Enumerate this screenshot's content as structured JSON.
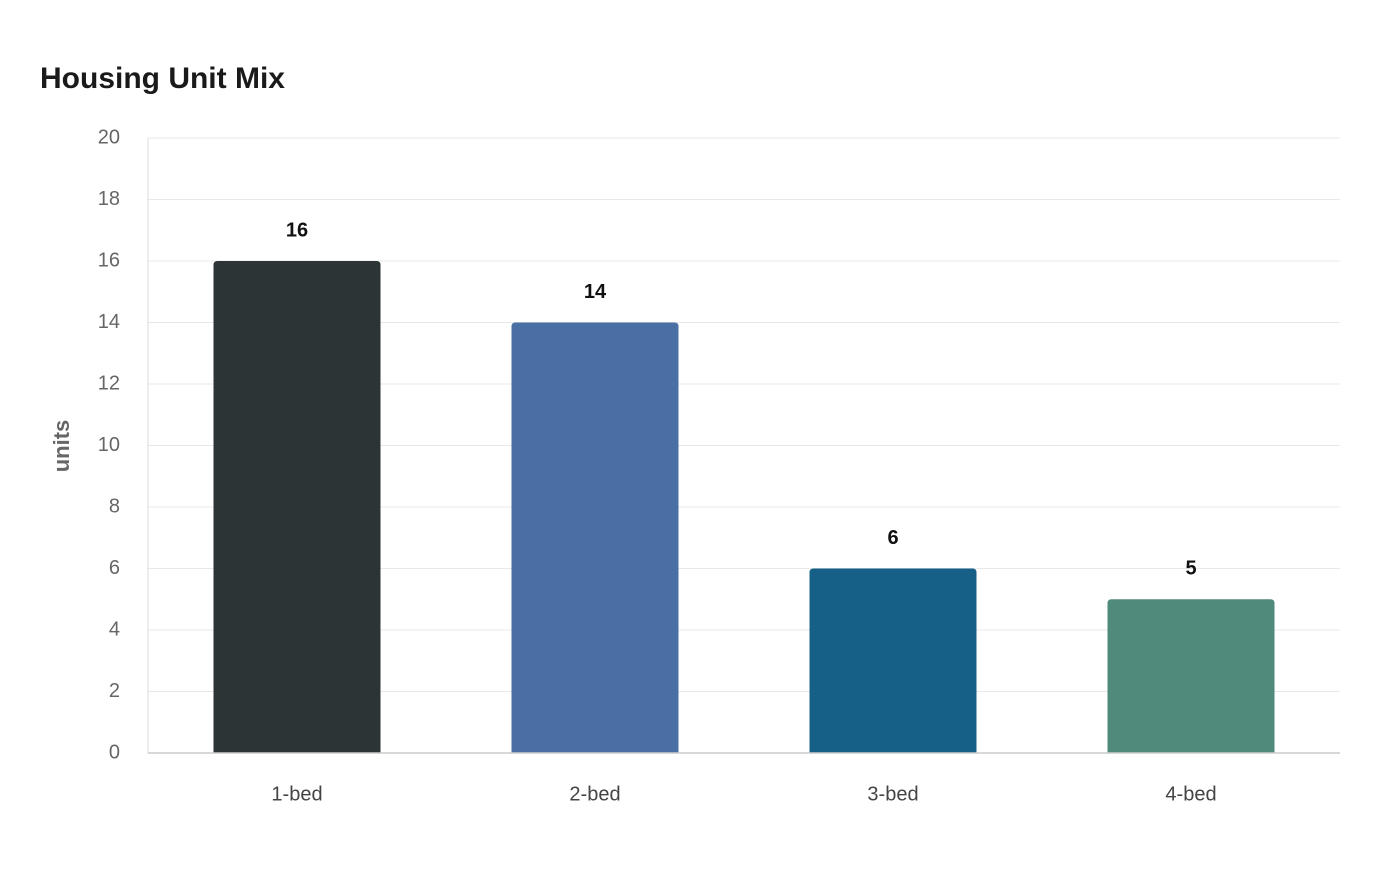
{
  "chart_data": {
    "type": "bar",
    "title": "Housing Unit Mix",
    "y_label": "units",
    "categories": [
      "1-bed",
      "2-bed",
      "3-bed",
      "4-bed"
    ],
    "values": [
      16,
      14,
      6,
      5
    ],
    "colors": [
      "#2d3436",
      "#4a6fa5",
      "#166088",
      "#4f8a7a"
    ],
    "ylim": [
      0,
      20
    ],
    "yticks": [
      0,
      2,
      4,
      6,
      8,
      10,
      12,
      14,
      16,
      18,
      20
    ],
    "grid": true
  }
}
